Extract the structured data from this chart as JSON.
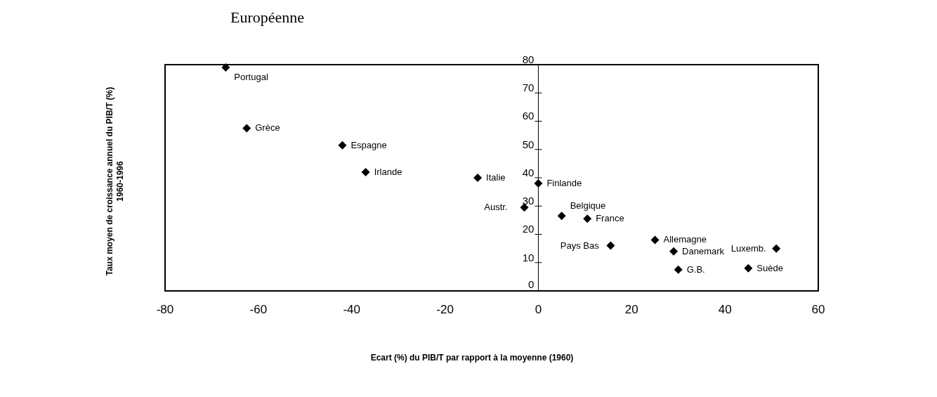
{
  "chart_data": {
    "type": "scatter",
    "title": "Européenne",
    "xlabel": "Ecart (%) du PIB/T par rapport à la moyenne (1960)",
    "ylabel": "Taux moyen de croissance annuel du PIB/T (%)\n1960-1996",
    "x": [
      -67,
      -62.5,
      -42,
      -37,
      -13,
      0,
      -3,
      5,
      10.5,
      15.5,
      25,
      29,
      30,
      45,
      51
    ],
    "values": [
      79,
      57.5,
      51.5,
      42,
      40,
      38,
      29.5,
      26.5,
      25.5,
      16,
      18,
      14,
      7.5,
      8,
      15
    ],
    "color": "#000000",
    "marker": "diamond",
    "grid": false,
    "xlim": [
      -80,
      60
    ],
    "xticks": [
      -80,
      -60,
      -40,
      -20,
      0,
      20,
      40,
      60
    ],
    "ylim": [
      0,
      80
    ],
    "yticks": [
      0,
      10,
      20,
      30,
      40,
      50,
      60,
      70,
      80
    ],
    "annotations": [
      {
        "text": "Portugal",
        "x": -67,
        "y": 79
      },
      {
        "text": "Grèce",
        "x": -62.5,
        "y": 57.5
      },
      {
        "text": "Espagne",
        "x": -42,
        "y": 51.5
      },
      {
        "text": "Irlande",
        "x": -37,
        "y": 42
      },
      {
        "text": "Italie",
        "x": -13,
        "y": 40
      },
      {
        "text": "Finlande",
        "x": 0,
        "y": 38
      },
      {
        "text": "Austr.",
        "x": -3,
        "y": 29.5
      },
      {
        "text": "Belgique",
        "x": 5,
        "y": 26.5
      },
      {
        "text": "France",
        "x": 10.5,
        "y": 25.5
      },
      {
        "text": "Pays Bas",
        "x": 15.5,
        "y": 16
      },
      {
        "text": "Allemagne",
        "x": 25,
        "y": 18
      },
      {
        "text": "Danemark",
        "x": 29,
        "y": 14
      },
      {
        "text": "G.B.",
        "x": 30,
        "y": 7.5
      },
      {
        "text": "Suède",
        "x": 45,
        "y": 8
      },
      {
        "text": "Luxemb.",
        "x": 51,
        "y": 15
      }
    ]
  }
}
